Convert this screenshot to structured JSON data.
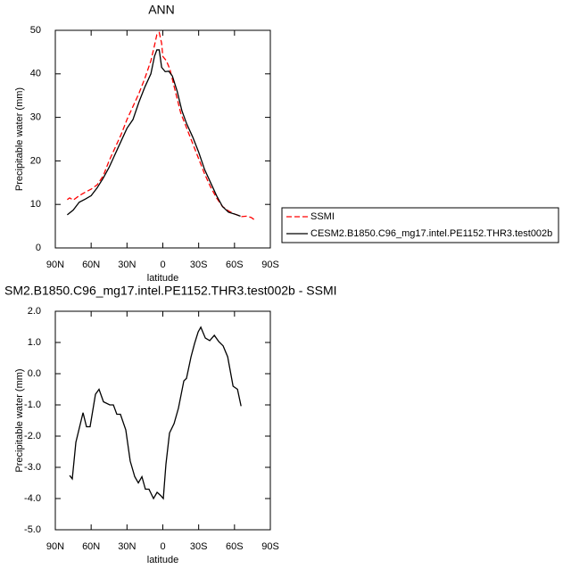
{
  "chart_data": [
    {
      "type": "line",
      "title": "ANN",
      "ylabel": "Precipitable water (mm)",
      "xlabel": "latitude",
      "xlim": [
        90,
        -90
      ],
      "ylim": [
        0,
        50
      ],
      "xticks": [
        {
          "value": 90,
          "label": "90N"
        },
        {
          "value": 60,
          "label": "60N"
        },
        {
          "value": 30,
          "label": "30N"
        },
        0,
        {
          "value": -30,
          "label": "30S"
        },
        {
          "value": -60,
          "label": "60S"
        },
        {
          "value": -90,
          "label": "90S"
        }
      ],
      "yticks": [
        0,
        10,
        20,
        30,
        40,
        50
      ],
      "legend": "right",
      "series": [
        {
          "name": "SSMI",
          "color": "#ff0000",
          "line_style": "dashed",
          "x": [
            80,
            78,
            75,
            70,
            65,
            60,
            55,
            50,
            45,
            40,
            35,
            30,
            25,
            20,
            15,
            10,
            7,
            5,
            3,
            1,
            0,
            -3,
            -6,
            -10,
            -15,
            -20,
            -25,
            -30,
            -35,
            -40,
            -45,
            -50,
            -55,
            -60,
            -63,
            -66,
            -70,
            -74,
            -78
          ],
          "values": [
            11.1,
            11.5,
            11,
            12,
            12.8,
            13.5,
            14.5,
            16.5,
            20,
            23,
            26,
            29.5,
            32.5,
            35.5,
            39,
            43,
            46.5,
            49,
            49.5,
            47,
            44,
            43,
            41,
            36.5,
            31,
            27.5,
            24,
            20.5,
            17,
            14,
            11.5,
            9.5,
            8.5,
            7.8,
            7.5,
            7.2,
            7.3,
            7,
            6.2
          ]
        },
        {
          "name": "CESM2.B1850.C96_mg17.intel.PE1152.THR3.test002b",
          "color": "#000000",
          "line_style": "solid",
          "x": [
            80,
            75,
            70,
            65,
            60,
            55,
            50,
            45,
            40,
            35,
            30,
            25,
            20,
            15,
            10,
            7,
            5,
            3,
            1,
            -2,
            -5,
            -8,
            -12,
            -16,
            -20,
            -25,
            -30,
            -35,
            -40,
            -45,
            -50,
            -55,
            -60,
            -65
          ],
          "values": [
            7.6,
            8.7,
            10.5,
            11.2,
            12,
            13.8,
            16,
            18.5,
            21.5,
            24.5,
            27.5,
            29.5,
            33.5,
            37,
            40,
            44,
            45.5,
            45.5,
            41.5,
            40.5,
            40.6,
            39.5,
            36,
            31.5,
            28.5,
            25.5,
            22,
            18,
            15,
            12,
            9.5,
            8.2,
            7.8,
            7.3
          ]
        }
      ]
    },
    {
      "type": "line",
      "title": "SM2.B1850.C96_mg17.intel.PE1152.THR3.test002b - SSMI",
      "ylabel": "Precipitable water (mm)",
      "xlabel": "latitude",
      "xlim": [
        90,
        -90
      ],
      "ylim": [
        -5,
        2
      ],
      "xticks": [
        {
          "value": 90,
          "label": "90N"
        },
        {
          "value": 60,
          "label": "60N"
        },
        {
          "value": 30,
          "label": "30N"
        },
        0,
        {
          "value": -30,
          "label": "30S"
        },
        {
          "value": -60,
          "label": "60S"
        },
        {
          "value": -90,
          "label": "90S"
        }
      ],
      "yticks": [
        {
          "value": 2,
          "label": "2.0"
        },
        {
          "value": 1,
          "label": "1.0"
        },
        {
          "value": 0,
          "label": "0.0"
        },
        {
          "value": -1,
          "label": "-1.0"
        },
        {
          "value": -2,
          "label": "-2.0"
        },
        {
          "value": -3,
          "label": "-3.0"
        },
        {
          "value": -4,
          "label": "-4.0"
        },
        {
          "value": -5,
          "label": "-5.0"
        }
      ],
      "series": [
        {
          "color": "#000000",
          "line_style": "solid",
          "x": [
            78,
            75.8,
            72.8,
            66.8,
            63.9,
            60.9,
            56.4,
            53.4,
            49.7,
            44.4,
            41.4,
            38.5,
            35.5,
            31,
            27.3,
            23.5,
            20.5,
            17.5,
            14.6,
            11.6,
            7.8,
            4.8,
            1.9,
            -0.4,
            -2.6,
            -5.6,
            -9.4,
            -13.1,
            -17.6,
            -19.8,
            -23.6,
            -26.6,
            -29.6,
            -31.8,
            -35.6,
            -39.3,
            -43.1,
            -46.8,
            -50.5,
            -54.3,
            -58.8,
            -62.5,
            -65.5
          ],
          "values": [
            -3.26,
            -3.37,
            -2.2,
            -1.25,
            -1.7,
            -1.7,
            -0.66,
            -0.5,
            -0.9,
            -1,
            -1,
            -1.3,
            -1.3,
            -1.8,
            -2.8,
            -3.3,
            -3.5,
            -3.3,
            -3.7,
            -3.7,
            -4,
            -3.8,
            -3.9,
            -4,
            -2.9,
            -1.9,
            -1.6,
            -1.1,
            -0.23,
            -0.15,
            0.54,
            0.97,
            1.34,
            1.49,
            1.14,
            1.06,
            1.23,
            1.03,
            0.89,
            0.54,
            -0.4,
            -0.5,
            -1.04
          ]
        }
      ]
    }
  ]
}
